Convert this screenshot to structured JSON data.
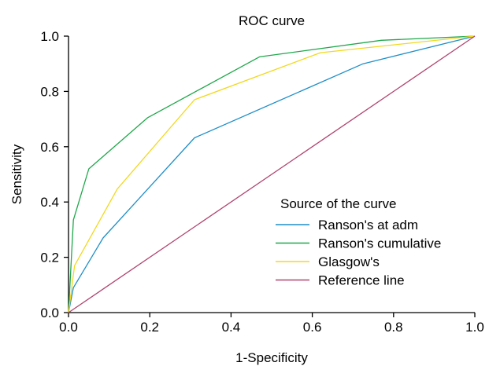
{
  "chart_data": {
    "type": "line",
    "title": "ROC curve",
    "xlabel": "1-Specificity",
    "ylabel": "Sensitivity",
    "xlim": [
      0,
      1
    ],
    "ylim": [
      0,
      1
    ],
    "x_ticks": [
      "0.0",
      "0.2",
      "0.4",
      "0.6",
      "0.8",
      "1.0"
    ],
    "y_ticks": [
      "0.0",
      "0.2",
      "0.4",
      "0.6",
      "0.8",
      "1.0"
    ],
    "grid": false,
    "legend": {
      "title": "Source of the curve",
      "placement": "lower-right"
    },
    "series": [
      {
        "name": "Ranson's at adm",
        "color": "#1f8fc8",
        "points": [
          [
            0,
            0
          ],
          [
            0.012,
            0.09
          ],
          [
            0.085,
            0.27
          ],
          [
            0.31,
            0.632
          ],
          [
            0.725,
            0.9
          ],
          [
            1,
            1
          ]
        ]
      },
      {
        "name": "Ranson's cumulative",
        "color": "#1fa84a",
        "points": [
          [
            0,
            0
          ],
          [
            0.012,
            0.335
          ],
          [
            0.05,
            0.52
          ],
          [
            0.195,
            0.705
          ],
          [
            0.47,
            0.925
          ],
          [
            0.77,
            0.985
          ],
          [
            1,
            1
          ]
        ]
      },
      {
        "name": "Glasgow's",
        "color": "#f2d81e",
        "points": [
          [
            0,
            0
          ],
          [
            0.015,
            0.17
          ],
          [
            0.12,
            0.447
          ],
          [
            0.31,
            0.77
          ],
          [
            0.62,
            0.94
          ],
          [
            1,
            1
          ]
        ]
      },
      {
        "name": "Reference line",
        "color": "#b0456e",
        "points": [
          [
            0,
            0
          ],
          [
            1,
            1
          ]
        ]
      }
    ]
  }
}
